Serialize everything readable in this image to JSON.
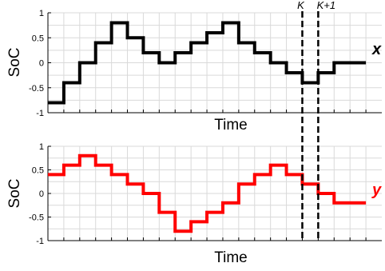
{
  "chart_data": [
    {
      "type": "line",
      "step": true,
      "xlabel": "Time",
      "ylabel": "SoC",
      "ylim": [
        -1,
        1
      ],
      "yticks": [
        "1",
        "0.5",
        "0",
        "-0.5",
        "-1"
      ],
      "x_steps": 21,
      "grid": true,
      "series": [
        {
          "name": "x",
          "color": "#000000",
          "values": [
            -0.8,
            -0.4,
            0,
            0.4,
            0.8,
            0.5,
            0.2,
            0,
            0.2,
            0.4,
            0.6,
            0.8,
            0.4,
            0.2,
            0,
            -0.2,
            -0.4,
            -0.2,
            0,
            0.0
          ]
        }
      ]
    },
    {
      "type": "line",
      "step": true,
      "xlabel": "Time",
      "ylabel": "SoC",
      "ylim": [
        -1,
        1
      ],
      "yticks": [
        "1",
        "0.5",
        "0",
        "-0.5",
        "-1"
      ],
      "x_steps": 21,
      "grid": true,
      "series": [
        {
          "name": "y",
          "color": "#ff0000",
          "values": [
            0.4,
            0.6,
            0.8,
            0.6,
            0.4,
            0.2,
            0,
            -0.4,
            -0.8,
            -0.6,
            -0.4,
            -0.2,
            0.2,
            0.4,
            0.6,
            0.4,
            0.2,
            0,
            -0.2,
            -0.2
          ]
        }
      ]
    }
  ],
  "markers": {
    "k_label": "K",
    "k1_label": "K+1",
    "k_step": 16,
    "k1_step": 17
  }
}
